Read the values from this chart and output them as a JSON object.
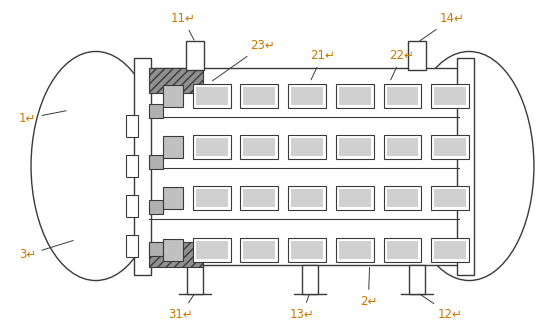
{
  "bg_color": "#ffffff",
  "line_color": "#3a3a3a",
  "label_color": "#cc7700",
  "arrow_color": "#3a3a3a",
  "fig_w": 5.6,
  "fig_h": 3.36,
  "dpi": 100
}
